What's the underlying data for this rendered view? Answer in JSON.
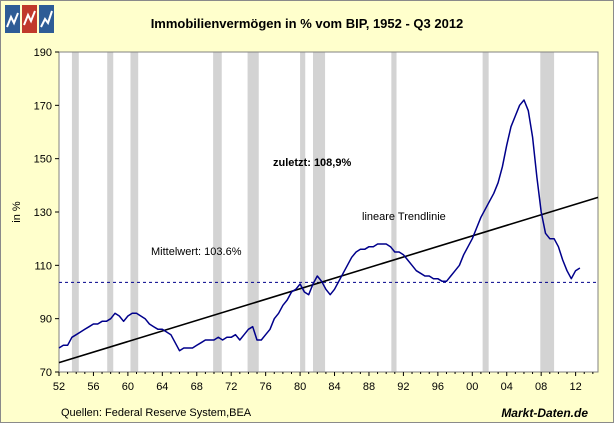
{
  "chart_data": {
    "type": "line",
    "title": "Immobilienvermögen in % vom BIP, 1952 - Q3 2012",
    "ylabel": "in %",
    "xlabel": "",
    "ylim": [
      70,
      190
    ],
    "yticks": [
      70,
      90,
      110,
      130,
      150,
      170,
      190
    ],
    "xlim": [
      1952,
      2014.6
    ],
    "xticks": [
      52,
      56,
      60,
      64,
      68,
      72,
      76,
      80,
      84,
      88,
      92,
      96,
      "00",
      "04",
      "08",
      12
    ],
    "recession_bands": [
      [
        1953.5,
        1954.3
      ],
      [
        1957.6,
        1958.3
      ],
      [
        1960.3,
        1961.2
      ],
      [
        1969.9,
        1970.9
      ],
      [
        1973.9,
        1975.2
      ],
      [
        1980.0,
        1980.6
      ],
      [
        1981.5,
        1982.9
      ],
      [
        1990.6,
        1991.2
      ],
      [
        2001.2,
        2001.9
      ],
      [
        2007.9,
        2009.5
      ]
    ],
    "series": [
      {
        "name": "Immobilienvermögen in % vom BIP",
        "color": "#00008B",
        "x": [
          1952.0,
          1952.5,
          1953.0,
          1953.5,
          1954.0,
          1954.5,
          1955.0,
          1955.5,
          1956.0,
          1956.5,
          1957.0,
          1957.5,
          1958.0,
          1958.5,
          1959.0,
          1959.5,
          1960.0,
          1960.5,
          1961.0,
          1961.5,
          1962.0,
          1962.5,
          1963.0,
          1963.5,
          1964.0,
          1964.5,
          1965.0,
          1965.5,
          1966.0,
          1966.5,
          1967.0,
          1967.5,
          1968.0,
          1968.5,
          1969.0,
          1969.5,
          1970.0,
          1970.5,
          1971.0,
          1971.5,
          1972.0,
          1972.5,
          1973.0,
          1973.5,
          1974.0,
          1974.5,
          1975.0,
          1975.5,
          1976.0,
          1976.5,
          1977.0,
          1977.5,
          1978.0,
          1978.5,
          1979.0,
          1979.5,
          1980.0,
          1980.5,
          1981.0,
          1981.5,
          1982.0,
          1982.5,
          1983.0,
          1983.5,
          1984.0,
          1984.5,
          1985.0,
          1985.5,
          1986.0,
          1986.5,
          1987.0,
          1987.5,
          1988.0,
          1988.5,
          1989.0,
          1989.5,
          1990.0,
          1990.5,
          1991.0,
          1991.5,
          1992.0,
          1992.5,
          1993.0,
          1993.5,
          1994.0,
          1994.5,
          1995.0,
          1995.5,
          1996.0,
          1996.5,
          1997.0,
          1997.5,
          1998.0,
          1998.5,
          1999.0,
          1999.5,
          2000.0,
          2000.5,
          2001.0,
          2001.5,
          2002.0,
          2002.5,
          2003.0,
          2003.5,
          2004.0,
          2004.5,
          2005.0,
          2005.5,
          2006.0,
          2006.5,
          2007.0,
          2007.5,
          2008.0,
          2008.5,
          2009.0,
          2009.5,
          2010.0,
          2010.5,
          2011.0,
          2011.5,
          2012.0,
          2012.5
        ],
        "values": [
          79,
          80,
          80,
          83,
          84,
          85,
          86,
          87,
          88,
          88,
          89,
          89,
          90,
          92,
          91,
          89,
          91,
          92,
          92,
          91,
          90,
          88,
          87,
          86,
          86,
          85,
          84,
          81,
          78,
          79,
          79,
          79,
          80,
          81,
          82,
          82,
          82,
          83,
          82,
          83,
          83,
          84,
          82,
          84,
          86,
          87,
          82,
          82,
          84,
          86,
          90,
          92,
          95,
          97,
          100,
          101,
          103,
          100,
          99,
          103,
          106,
          104,
          101,
          99,
          101,
          104,
          107,
          110,
          113,
          115,
          116,
          116,
          117,
          117,
          118,
          118,
          118,
          117,
          115,
          115,
          114,
          112,
          110,
          108,
          107,
          106,
          106,
          105,
          105,
          104,
          104,
          106,
          108,
          110,
          114,
          117,
          120,
          124,
          128,
          131,
          134,
          137,
          141,
          147,
          155,
          162,
          166,
          170,
          172,
          168,
          158,
          143,
          130,
          122,
          120,
          120,
          117,
          112,
          108,
          105,
          108,
          109
        ]
      },
      {
        "name": "lineare Trendlinie",
        "color": "#000000",
        "x": [
          1952,
          2014.6
        ],
        "values": [
          73.5,
          135.5
        ]
      },
      {
        "name": "Mittelwert",
        "color": "#00008B",
        "x": [
          1952,
          2014.6
        ],
        "values": [
          103.6,
          103.6
        ]
      }
    ],
    "annotations": {
      "last": "zuletzt: 108,9%",
      "trend": "lineare Trendlinie",
      "mean": "Mittelwert: 103.6%"
    },
    "source": "Quellen: Federal Reserve System,BEA",
    "brand": "Markt-Daten.de"
  }
}
